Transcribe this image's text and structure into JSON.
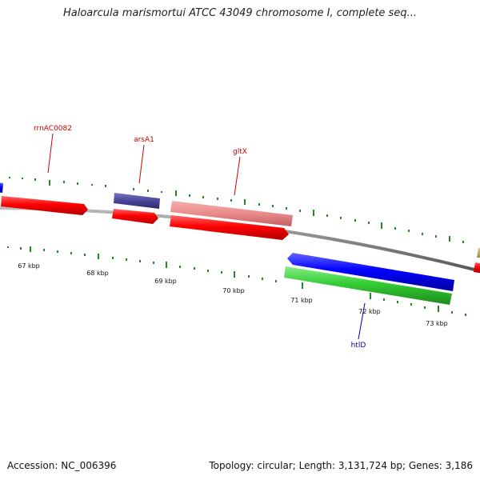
{
  "title": "Haloarcula marismortui ATCC 43049 chromosome I, complete seq...",
  "footer": {
    "accession": "Accession: NC_006396",
    "summary": "Topology: circular; Length: 3,131,724 bp; Genes: 3,186"
  },
  "axis": {
    "ticks": [
      "67 kbp",
      "68 kbp",
      "69 kbp",
      "70 kbp",
      "71 kbp",
      "72 kbp",
      "73 kbp"
    ]
  },
  "labels": {
    "rrnAC0082": "rrnAC0082",
    "arsA1": "arsA1",
    "gltX": "gltX",
    "htlD": "htlD"
  },
  "colors": {
    "red_feature": "#ff0000",
    "pink_feature": "#ee8888",
    "navy_feature": "#4a4598",
    "blue_feature": "#0000ff",
    "green_feature": "#33cc33",
    "backbone": "#888888",
    "tick_green": "#228822",
    "label_red": "#cc0000",
    "label_blue": "#0000aa"
  }
}
